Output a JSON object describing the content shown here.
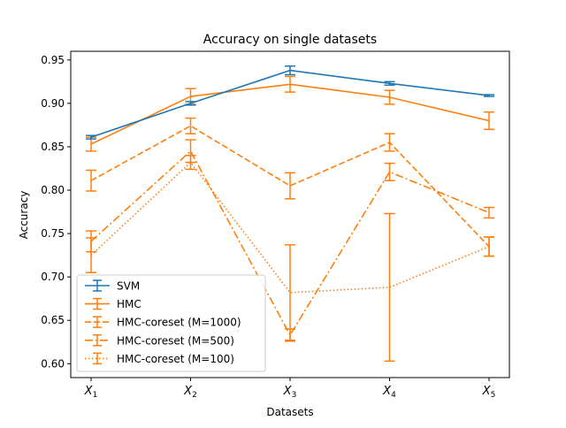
{
  "chart_data": {
    "type": "line",
    "title": "Accuracy on single datasets",
    "xlabel": "Datasets",
    "ylabel": "Accuracy",
    "categories": [
      {
        "base": "X",
        "sub": "1"
      },
      {
        "base": "X",
        "sub": "2"
      },
      {
        "base": "X",
        "sub": "3"
      },
      {
        "base": "X",
        "sub": "4"
      },
      {
        "base": "X",
        "sub": "5"
      }
    ],
    "ylim": [
      0.584,
      0.96
    ],
    "yticks": [
      {
        "value": 0.6,
        "label": "0.60"
      },
      {
        "value": 0.65,
        "label": "0.65"
      },
      {
        "value": 0.7,
        "label": "0.70"
      },
      {
        "value": 0.75,
        "label": "0.75"
      },
      {
        "value": 0.8,
        "label": "0.80"
      },
      {
        "value": 0.85,
        "label": "0.85"
      },
      {
        "value": 0.9,
        "label": "0.90"
      },
      {
        "value": 0.95,
        "label": "0.95"
      }
    ],
    "legend_position": "lower-left",
    "series": [
      {
        "name": "SVM",
        "color": "#1f77b4",
        "dash": "solid",
        "values": [
          0.861,
          0.9,
          0.938,
          0.923,
          0.909
        ],
        "errors": [
          0.002,
          0.002,
          0.005,
          0.002,
          0.001
        ]
      },
      {
        "name": "HMC",
        "color": "#ff7f0e",
        "dash": "solid",
        "values": [
          0.853,
          0.908,
          0.922,
          0.907,
          0.88
        ],
        "errors": [
          0.008,
          0.009,
          0.009,
          0.008,
          0.01
        ]
      },
      {
        "name": "HMC-coreset (M=1000)",
        "color": "#ff7f0e",
        "dash": "dashed",
        "values": [
          0.811,
          0.874,
          0.805,
          0.855,
          0.735
        ],
        "errors": [
          0.012,
          0.009,
          0.015,
          0.01,
          0.011
        ]
      },
      {
        "name": "HMC-coreset (M=500)",
        "color": "#ff7f0e",
        "dash": "dashdot",
        "values": [
          0.741,
          0.845,
          0.633,
          0.821,
          0.774
        ],
        "errors": [
          0.012,
          0.013,
          0.007,
          0.01,
          0.006
        ]
      },
      {
        "name": "HMC-coreset (M=100)",
        "color": "#ff7f0e",
        "dash": "dotted",
        "values": [
          0.725,
          0.832,
          0.682,
          0.688,
          0.735
        ],
        "errors": [
          0.02,
          0.008,
          0.055,
          0.085,
          0.011
        ]
      }
    ]
  }
}
